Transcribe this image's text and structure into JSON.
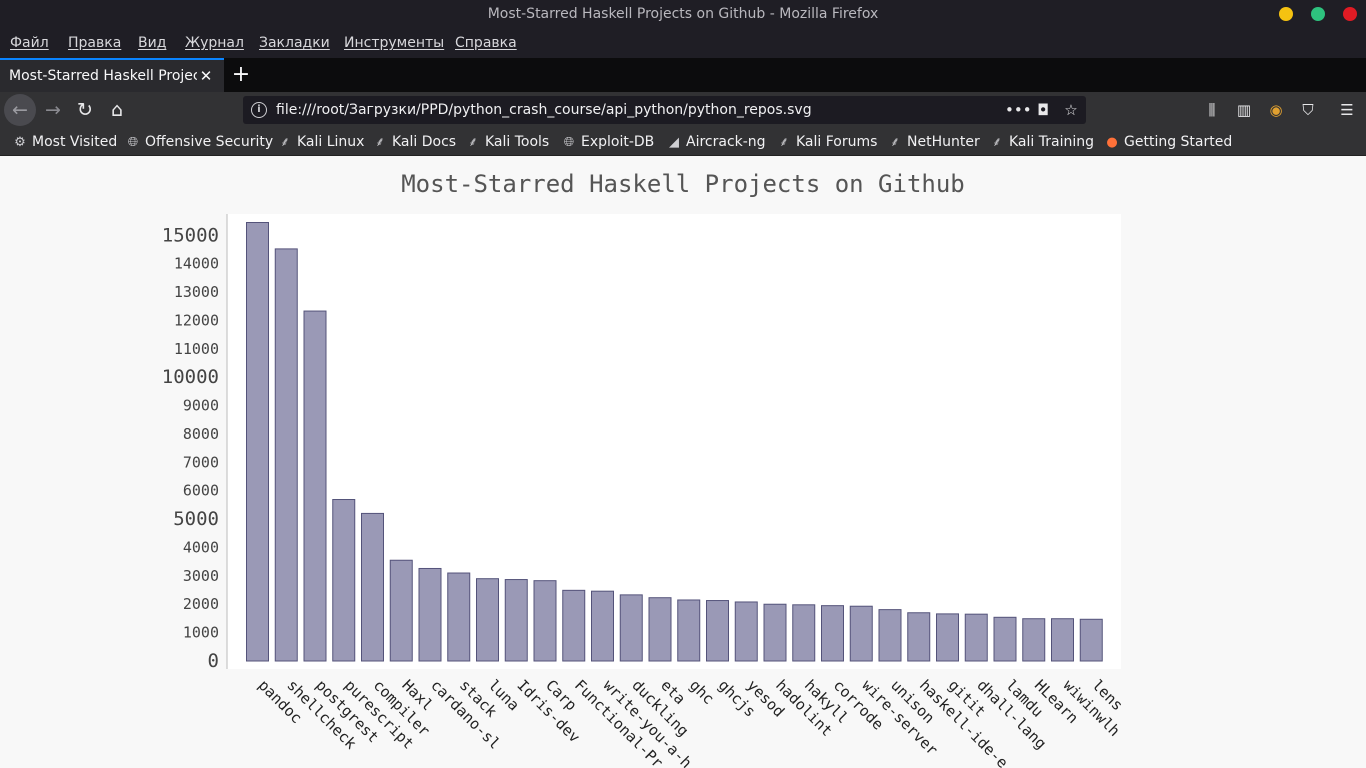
{
  "window": {
    "title": "Most-Starred Haskell Projects on Github - Mozilla Firefox",
    "button_colors": [
      "#f5c211",
      "#2ec27e",
      "#e01b24"
    ]
  },
  "menu": [
    "Файл",
    "Правка",
    "Вид",
    "Журнал",
    "Закладки",
    "Инструменты",
    "Справка"
  ],
  "tab": {
    "title": "Most-Starred Haskell Projects on Github"
  },
  "nav": {
    "url": "file:///root/Загрузки/PPD/python_crash_course/api_python/python_repos.svg",
    "icons": [
      "back-arrow-icon",
      "forward-arrow-icon",
      "reload-icon",
      "home-icon",
      "page-actions-icon",
      "pocket-icon",
      "star-icon",
      "library-icon",
      "sidebar-icon",
      "extension-icon",
      "shield-icon",
      "hamburger-menu-icon"
    ]
  },
  "bookmarks": [
    {
      "label": "Most Visited",
      "icon": "gear-icon"
    },
    {
      "label": "Offensive Security",
      "icon": "globe-icon"
    },
    {
      "label": "Kali Linux",
      "icon": "kali-dragon-icon"
    },
    {
      "label": "Kali Docs",
      "icon": "kali-dragon-icon"
    },
    {
      "label": "Kali Tools",
      "icon": "kali-dragon-icon"
    },
    {
      "label": "Exploit-DB",
      "icon": "globe-icon"
    },
    {
      "label": "Aircrack-ng",
      "icon": "aircrack-icon"
    },
    {
      "label": "Kali Forums",
      "icon": "kali-dragon-icon"
    },
    {
      "label": "NetHunter",
      "icon": "kali-dragon-icon"
    },
    {
      "label": "Kali Training",
      "icon": "kali-dragon-icon"
    },
    {
      "label": "Getting Started",
      "icon": "firefox-icon"
    }
  ],
  "chart_data": {
    "type": "bar",
    "title": "Most-Starred Haskell Projects on Github",
    "categories": [
      "pandoc",
      "shellcheck",
      "postgrest",
      "purescript",
      "compiler",
      "Haxl",
      "cardano-sl",
      "stack",
      "luna",
      "Idris-dev",
      "Carp",
      "Functional-Pr",
      "write-you-a-h",
      "duckling",
      "eta",
      "ghc",
      "ghcjs",
      "yesod",
      "hadolint",
      "hakyll",
      "corrode",
      "wire-server",
      "unison",
      "haskell-ide-e",
      "gitit",
      "dhall-lang",
      "lamdu",
      "HLearn",
      "wiwinwlh",
      "lens"
    ],
    "values": [
      15450,
      14520,
      12330,
      5690,
      5200,
      3550,
      3260,
      3100,
      2900,
      2870,
      2830,
      2490,
      2460,
      2330,
      2230,
      2150,
      2130,
      2080,
      2000,
      1980,
      1950,
      1930,
      1810,
      1700,
      1660,
      1650,
      1540,
      1490,
      1490,
      1470
    ],
    "yticks": [
      0,
      1000,
      2000,
      3000,
      4000,
      5000,
      6000,
      7000,
      8000,
      9000,
      10000,
      11000,
      12000,
      13000,
      14000,
      15000
    ],
    "major_yticks": [
      0,
      5000,
      10000,
      15000
    ],
    "ylim": [
      0,
      15450
    ],
    "colors": {
      "bar_fill": "#9a99b6",
      "bar_stroke": "#54537a",
      "plot_bg": "#ffffff",
      "page_bg": "#f8f8f8"
    }
  }
}
